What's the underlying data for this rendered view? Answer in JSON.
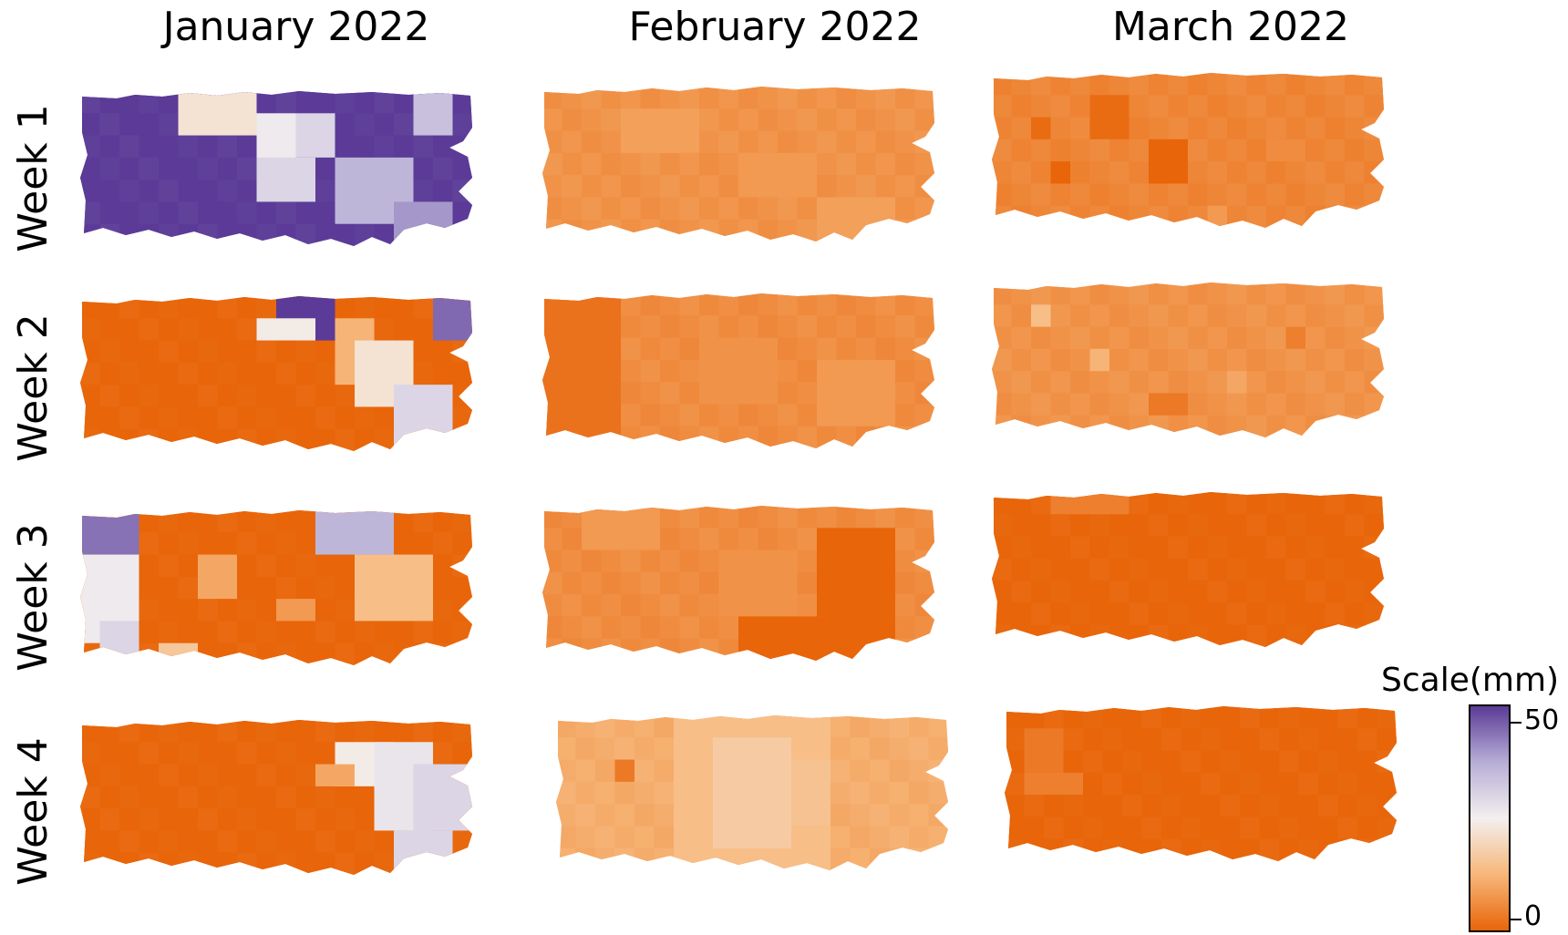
{
  "columns": [
    "January 2022",
    "February 2022",
    "March 2022"
  ],
  "rows": [
    "Week 1",
    "Week 2",
    "Week 3",
    "Week 4"
  ],
  "legend": {
    "title": "Scale(mm)",
    "max_label": "50",
    "min_label": "0",
    "min_value": 0,
    "max_value": 50,
    "colors": [
      "#e8650a",
      "#f7b77a",
      "#f3efef",
      "#b7aed6",
      "#5b3b97"
    ]
  },
  "maps": [
    {
      "id": "jan-w1",
      "base": 50,
      "patches": [
        [
          5,
          0,
          4,
          2,
          22
        ],
        [
          9,
          1,
          2,
          3,
          26
        ],
        [
          11,
          1,
          2,
          2,
          30
        ],
        [
          9,
          3,
          3,
          2,
          30
        ],
        [
          13,
          3,
          4,
          3,
          36
        ],
        [
          17,
          0,
          2,
          2,
          34
        ],
        [
          16,
          5,
          3,
          2,
          40
        ]
      ]
    },
    {
      "id": "feb-w1",
      "base": 7,
      "patches": [
        [
          4,
          1,
          4,
          2,
          9
        ],
        [
          10,
          3,
          4,
          2,
          8
        ],
        [
          14,
          5,
          4,
          2,
          9
        ]
      ]
    },
    {
      "id": "mar-w1",
      "base": 5,
      "patches": [
        [
          2,
          2,
          1,
          1,
          1
        ],
        [
          5,
          1,
          2,
          2,
          1
        ],
        [
          8,
          3,
          2,
          2,
          0
        ],
        [
          14,
          3,
          2,
          1,
          6
        ],
        [
          11,
          6,
          1,
          1,
          8
        ],
        [
          3,
          4,
          1,
          1,
          0
        ]
      ]
    },
    {
      "id": "jan-w2",
      "base": 0,
      "patches": [
        [
          10,
          0,
          3,
          2,
          50
        ],
        [
          9,
          1,
          3,
          1,
          24
        ],
        [
          13,
          1,
          2,
          3,
          12
        ],
        [
          14,
          2,
          3,
          3,
          22
        ],
        [
          16,
          4,
          3,
          3,
          30
        ],
        [
          18,
          0,
          2,
          2,
          45
        ],
        [
          19,
          6,
          1,
          1,
          48
        ]
      ]
    },
    {
      "id": "feb-w2",
      "base": 6,
      "patches": [
        [
          0,
          0,
          4,
          7,
          2
        ],
        [
          8,
          2,
          4,
          3,
          7
        ],
        [
          14,
          3,
          4,
          3,
          8
        ]
      ]
    },
    {
      "id": "mar-w2",
      "base": 7,
      "patches": [
        [
          2,
          1,
          1,
          1,
          14
        ],
        [
          5,
          3,
          1,
          1,
          12
        ],
        [
          8,
          5,
          2,
          1,
          3
        ],
        [
          12,
          4,
          1,
          1,
          10
        ],
        [
          15,
          2,
          1,
          1,
          4
        ]
      ]
    },
    {
      "id": "jan-w3",
      "base": 0,
      "patches": [
        [
          0,
          0,
          3,
          2,
          44
        ],
        [
          0,
          2,
          3,
          4,
          26
        ],
        [
          1,
          5,
          2,
          2,
          30
        ],
        [
          6,
          2,
          2,
          2,
          10
        ],
        [
          12,
          0,
          4,
          2,
          36
        ],
        [
          14,
          2,
          4,
          3,
          14
        ],
        [
          10,
          4,
          2,
          1,
          8
        ],
        [
          4,
          6,
          2,
          1,
          16
        ]
      ]
    },
    {
      "id": "feb-w3",
      "base": 6,
      "patches": [
        [
          9,
          2,
          4,
          3,
          7
        ],
        [
          14,
          1,
          4,
          4,
          0
        ],
        [
          10,
          5,
          8,
          2,
          0
        ],
        [
          2,
          0,
          4,
          2,
          8
        ]
      ]
    },
    {
      "id": "mar-w3",
      "base": 0,
      "patches": [
        [
          3,
          0,
          4,
          1,
          4
        ]
      ]
    },
    {
      "id": "jan-w4",
      "base": 0,
      "patches": [
        [
          13,
          1,
          3,
          2,
          24
        ],
        [
          15,
          1,
          3,
          4,
          27
        ],
        [
          17,
          2,
          3,
          3,
          30
        ],
        [
          12,
          2,
          2,
          1,
          10
        ],
        [
          16,
          5,
          3,
          2,
          30
        ]
      ]
    },
    {
      "id": "feb-w4",
      "base": 11,
      "patches": [
        [
          6,
          0,
          8,
          7,
          14
        ],
        [
          8,
          1,
          4,
          5,
          17
        ],
        [
          3,
          2,
          1,
          1,
          3
        ],
        [
          12,
          2,
          2,
          3,
          15
        ]
      ]
    },
    {
      "id": "mar-w4",
      "base": 0,
      "patches": [
        [
          1,
          1,
          2,
          2,
          3
        ],
        [
          1,
          3,
          3,
          1,
          4
        ]
      ]
    }
  ]
}
